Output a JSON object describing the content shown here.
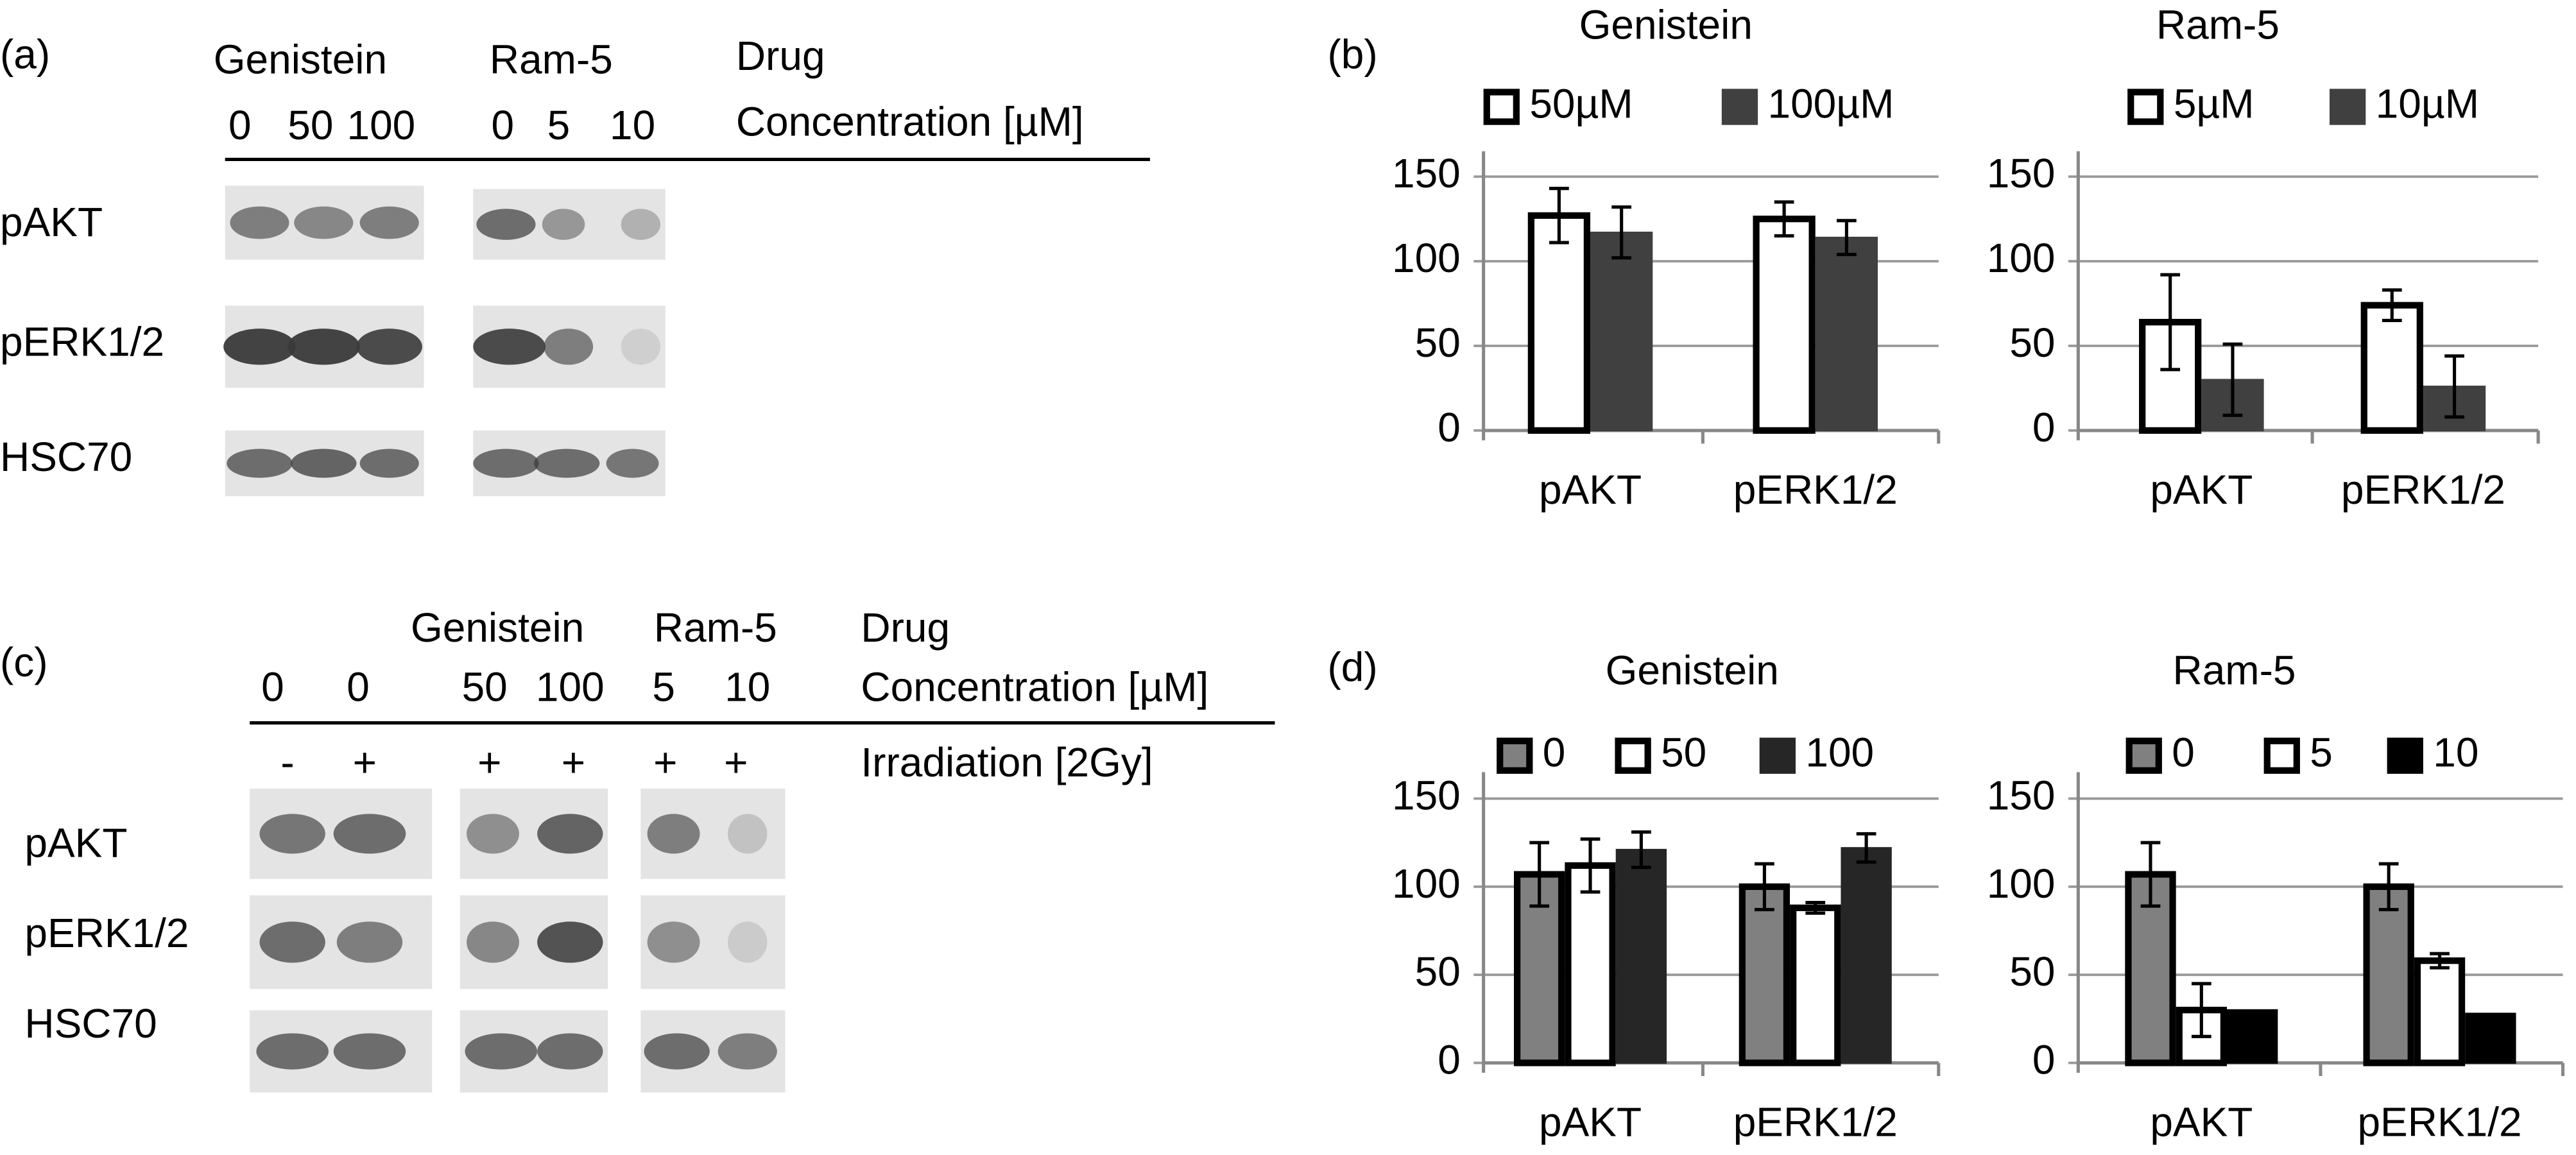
{
  "panels": {
    "a": {
      "label": "(a)",
      "drugs": [
        "Genistein",
        "Ram-5"
      ],
      "drug_heading": "Drug",
      "conc_heading": "Concentration [µM]",
      "concentrations": [
        "0",
        "50",
        "100",
        "0",
        "5",
        "10"
      ],
      "rows": [
        "pAKT",
        "pERK1/2",
        "HSC70"
      ]
    },
    "b": {
      "label": "(b)"
    },
    "c": {
      "label": "(c)",
      "drugs": [
        "Genistein",
        "Ram-5"
      ],
      "drug_heading": "Drug",
      "conc_heading": "Concentration [µM]",
      "concentrations": [
        "0",
        "0",
        "50",
        "100",
        "5",
        "10"
      ],
      "irradiation": [
        "-",
        "+",
        "+",
        "+",
        "+",
        "+"
      ],
      "irradiation_heading": "Irradiation [2Gy]",
      "rows": [
        "pAKT",
        "pERK1/2",
        "HSC70"
      ]
    },
    "d": {
      "label": "(d)"
    }
  },
  "chart_data": [
    {
      "type": "bar",
      "title": "Genistein",
      "categories": [
        "pAKT",
        "pERK1/2"
      ],
      "ylim": [
        0,
        165
      ],
      "yticks": [
        0,
        50,
        100,
        150
      ],
      "grid": true,
      "series": [
        {
          "name": "50µM",
          "color": "#ffffff",
          "edgecolor": "#000000",
          "values": [
            127,
            125
          ],
          "errors": [
            16,
            10
          ]
        },
        {
          "name": "100µM",
          "color": "#404040",
          "edgecolor": "#404040",
          "values": [
            117,
            114
          ],
          "errors": [
            15,
            10
          ]
        }
      ]
    },
    {
      "type": "bar",
      "title": "Ram-5",
      "categories": [
        "pAKT",
        "pERK1/2"
      ],
      "ylim": [
        0,
        165
      ],
      "yticks": [
        0,
        50,
        100,
        150
      ],
      "grid": true,
      "series": [
        {
          "name": "5µM",
          "color": "#ffffff",
          "edgecolor": "#000000",
          "values": [
            64,
            74
          ],
          "errors": [
            28,
            9
          ]
        },
        {
          "name": "10µM",
          "color": "#404040",
          "edgecolor": "#404040",
          "values": [
            30,
            26
          ],
          "errors": [
            21,
            18
          ]
        }
      ]
    },
    {
      "type": "bar",
      "title": "Genistein",
      "categories": [
        "pAKT",
        "pERK1/2"
      ],
      "ylim": [
        0,
        165
      ],
      "yticks": [
        0,
        50,
        100,
        150
      ],
      "grid": true,
      "series": [
        {
          "name": "0",
          "color": "#808080",
          "edgecolor": "#000000",
          "values": [
            107,
            100
          ],
          "errors": [
            18,
            13
          ]
        },
        {
          "name": "50",
          "color": "#ffffff",
          "edgecolor": "#000000",
          "values": [
            112,
            88
          ],
          "errors": [
            15,
            3
          ]
        },
        {
          "name": "100",
          "color": "#262626",
          "edgecolor": "#262626",
          "values": [
            121,
            122
          ],
          "errors": [
            10,
            8
          ]
        }
      ]
    },
    {
      "type": "bar",
      "title": "Ram-5",
      "categories": [
        "pAKT",
        "pERK1/2"
      ],
      "ylim": [
        0,
        165
      ],
      "yticks": [
        0,
        50,
        100,
        150
      ],
      "grid": true,
      "series": [
        {
          "name": "0",
          "color": "#808080",
          "edgecolor": "#000000",
          "values": [
            107,
            100
          ],
          "errors": [
            18,
            13
          ]
        },
        {
          "name": "5",
          "color": "#ffffff",
          "edgecolor": "#000000",
          "values": [
            30,
            58
          ],
          "errors": [
            15,
            4
          ]
        },
        {
          "name": "10",
          "color": "#000000",
          "edgecolor": "#000000",
          "values": [
            30,
            28
          ]
        }
      ]
    }
  ]
}
